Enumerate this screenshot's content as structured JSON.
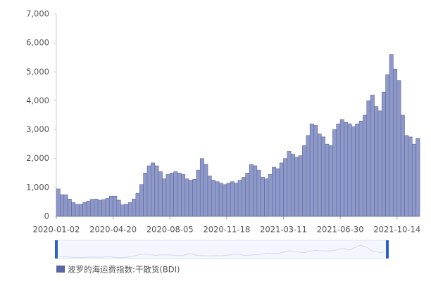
{
  "chart_data": {
    "type": "bar",
    "categories": [
      "2020-01-02",
      null,
      null,
      null,
      null,
      null,
      null,
      null,
      null,
      null,
      null,
      null,
      null,
      null,
      null,
      "2020-04-20",
      null,
      null,
      null,
      null,
      null,
      null,
      null,
      null,
      null,
      null,
      null,
      null,
      null,
      null,
      "2020-08-05",
      null,
      null,
      null,
      null,
      null,
      null,
      null,
      null,
      null,
      null,
      null,
      null,
      null,
      null,
      "2020-11-18",
      null,
      null,
      null,
      null,
      null,
      null,
      null,
      null,
      null,
      null,
      null,
      null,
      null,
      null,
      "2021-03-11",
      null,
      null,
      null,
      null,
      null,
      null,
      null,
      null,
      null,
      null,
      null,
      null,
      null,
      null,
      "2021-06-30",
      null,
      null,
      null,
      null,
      null,
      null,
      null,
      null,
      null,
      null,
      null,
      null,
      null,
      null,
      "2021-10-14",
      null,
      null,
      null,
      null,
      null
    ],
    "series": [
      {
        "name": "波罗的海运费指数:干散货(BDI)",
        "color": "#8f99c7",
        "values": [
          950,
          750,
          750,
          600,
          480,
          420,
          420,
          480,
          530,
          590,
          600,
          560,
          580,
          620,
          700,
          700,
          560,
          400,
          420,
          480,
          600,
          800,
          1100,
          1500,
          1750,
          1850,
          1750,
          1550,
          1300,
          1450,
          1500,
          1550,
          1500,
          1450,
          1300,
          1250,
          1280,
          1600,
          2000,
          1800,
          1400,
          1250,
          1200,
          1150,
          1100,
          1150,
          1200,
          1150,
          1250,
          1350,
          1500,
          1800,
          1750,
          1600,
          1350,
          1300,
          1450,
          1700,
          1650,
          1850,
          2000,
          2250,
          2150,
          2050,
          2100,
          2450,
          2800,
          3200,
          3150,
          2850,
          2750,
          2500,
          2450,
          3000,
          3200,
          3350,
          3250,
          3200,
          3100,
          3200,
          3300,
          3500,
          4000,
          4200,
          3800,
          3650,
          4300,
          4900,
          5600,
          5100,
          4700,
          3500,
          2800,
          2750,
          2500,
          2700
        ]
      }
    ],
    "ylim": [
      0,
      7000
    ],
    "yticks": [
      0,
      {
        "value": 1000,
        "label": "1,000"
      },
      {
        "value": 2000,
        "label": "2,000"
      },
      {
        "value": 3000,
        "label": "3,000"
      },
      {
        "value": 4000,
        "label": "4,000"
      },
      {
        "value": 5000,
        "label": "5,000"
      },
      {
        "value": 6000,
        "label": "6,000"
      },
      {
        "value": 7000,
        "label": "7,000"
      }
    ]
  }
}
